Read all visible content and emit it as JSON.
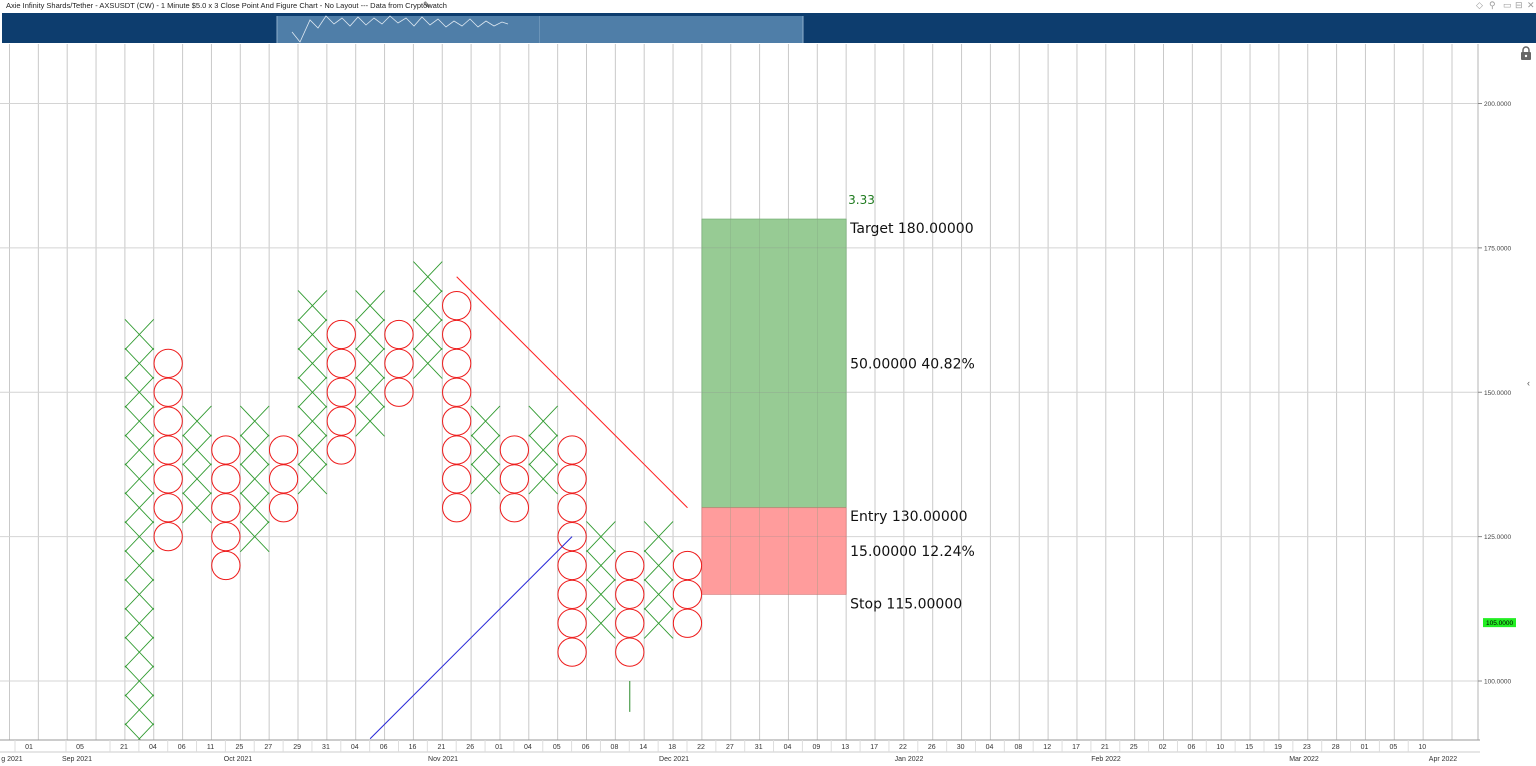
{
  "window": {
    "title": "Axie Infinity Shards/Tether - AXSUSDT (CW) - 1 Minute $5.0 x 3 Close Point And Figure Chart - No Layout --- Data from Cryptowatch"
  },
  "icons": [
    "pencil-icon",
    "lock-icon",
    "collapse-icon"
  ],
  "chart_data": {
    "type": "point-and-figure",
    "box_size": 5,
    "reversal": 3,
    "price_axis": {
      "range": [
        90,
        210
      ],
      "ticks": [
        {
          "value": 100,
          "label": "100.0000"
        },
        {
          "value": 125,
          "label": "125.0000"
        },
        {
          "value": 150,
          "label": "150.0000"
        },
        {
          "value": 175,
          "label": "175.0000"
        },
        {
          "value": 200,
          "label": "200.0000"
        }
      ]
    },
    "last_price": {
      "value": 105,
      "label": "105.0000",
      "color": "#22ee22"
    },
    "columns": [
      {
        "col": 4,
        "type": "X",
        "low": 90,
        "high": 160
      },
      {
        "col": 5,
        "type": "O",
        "high": 155,
        "low": 125
      },
      {
        "col": 6,
        "type": "X",
        "low": 130,
        "high": 145
      },
      {
        "col": 7,
        "type": "O",
        "high": 140,
        "low": 120
      },
      {
        "col": 8,
        "type": "X",
        "low": 125,
        "high": 145
      },
      {
        "col": 9,
        "type": "O",
        "high": 140,
        "low": 130
      },
      {
        "col": 10,
        "type": "X",
        "low": 135,
        "high": 165
      },
      {
        "col": 11,
        "type": "O",
        "high": 160,
        "low": 140
      },
      {
        "col": 12,
        "type": "X",
        "low": 145,
        "high": 165
      },
      {
        "col": 13,
        "type": "O",
        "high": 160,
        "low": 150
      },
      {
        "col": 14,
        "type": "X",
        "low": 155,
        "high": 170
      },
      {
        "col": 15,
        "type": "O",
        "high": 165,
        "low": 130
      },
      {
        "col": 16,
        "type": "X",
        "low": 135,
        "high": 145
      },
      {
        "col": 17,
        "type": "O",
        "high": 140,
        "low": 130
      },
      {
        "col": 18,
        "type": "X",
        "low": 135,
        "high": 145
      },
      {
        "col": 19,
        "type": "O",
        "high": 140,
        "low": 105
      },
      {
        "col": 20,
        "type": "X",
        "low": 110,
        "high": 125
      },
      {
        "col": 21,
        "type": "O",
        "high": 120,
        "low": 105
      },
      {
        "col": 22,
        "type": "X",
        "low": 110,
        "high": 125
      },
      {
        "col": 23,
        "type": "O",
        "high": 120,
        "low": 110
      }
    ],
    "trendlines": [
      {
        "name": "resistance",
        "color": "#ff2020",
        "from": {
          "col": 15,
          "price": 170
        },
        "to": {
          "col": 23,
          "price": 130
        }
      },
      {
        "name": "support",
        "color": "#2a2ad8",
        "from": {
          "col": 12,
          "price": 90
        },
        "to": {
          "col": 19,
          "price": 125
        }
      }
    ],
    "entry_marker": {
      "col": 21,
      "from_price": 100,
      "to_price": 95,
      "color": "#2a8a2a"
    },
    "risk_reward": {
      "ratio": "3.33",
      "target": {
        "label": "Target",
        "value": "180.00000",
        "price": 180
      },
      "entry": {
        "label": "Entry",
        "value": "130.00000",
        "price": 130
      },
      "stop": {
        "label": "Stop",
        "value": "115.00000",
        "price": 115
      },
      "reward": {
        "amount": "50.00000",
        "percent": "40.82%"
      },
      "risk": {
        "amount": "15.00000",
        "percent": "12.24%"
      },
      "colors": {
        "reward": "#97cb94",
        "risk": "#ff9c9c"
      }
    },
    "date_ticks": [
      "01",
      "05",
      "21",
      "04",
      "06",
      "11",
      "25",
      "27",
      "29",
      "31",
      "04",
      "06",
      "16",
      "21",
      "26",
      "01",
      "04",
      "05",
      "06",
      "08",
      "14",
      "18",
      "22",
      "27",
      "31",
      "04",
      "09",
      "13",
      "17",
      "22",
      "26",
      "30",
      "04",
      "08",
      "12",
      "17",
      "21",
      "25",
      "02",
      "06",
      "10",
      "15",
      "19",
      "23",
      "28",
      "01",
      "05",
      "10"
    ],
    "month_labels": [
      "g 2021",
      "Sep 2021",
      "Oct 2021",
      "Nov 2021",
      "Dec 2021",
      "Jan 2022",
      "Feb 2022",
      "Mar 2022",
      "Apr 2022"
    ]
  }
}
